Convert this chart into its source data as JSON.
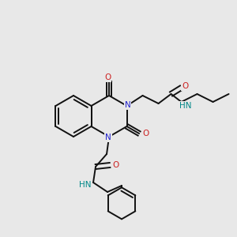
{
  "bg_color": "#e8e8e8",
  "atom_colors": {
    "C": "#000000",
    "N": "#2222cc",
    "O": "#cc2222",
    "H": "#008888"
  },
  "bond_color": "#111111",
  "bond_width": 1.4,
  "figsize": [
    3.0,
    3.0
  ],
  "dpi": 100
}
